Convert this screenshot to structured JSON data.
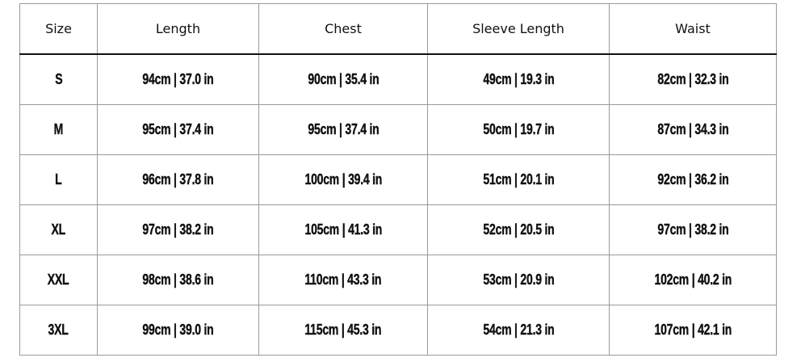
{
  "headers": [
    "Size",
    "Length",
    "Chest",
    "Sleeve Length",
    "Waist"
  ],
  "rows": [
    [
      "S",
      "94cm | 37.0 in",
      "90cm | 35.4 in",
      "49cm | 19.3 in",
      "82cm | 32.3 in"
    ],
    [
      "M",
      "95cm | 37.4 in",
      "95cm | 37.4 in",
      "50cm | 19.7 in",
      "87cm | 34.3 in"
    ],
    [
      "L",
      "96cm | 37.8 in",
      "100cm | 39.4 in",
      "51cm | 20.1 in",
      "92cm | 36.2 in"
    ],
    [
      "XL",
      "97cm | 38.2 in",
      "105cm | 41.3 in",
      "52cm | 20.5 in",
      "97cm | 38.2 in"
    ],
    [
      "XXL",
      "98cm | 38.6 in",
      "110cm | 43.3 in",
      "53cm | 20.9 in",
      "102cm | 40.2 in"
    ],
    [
      "3XL",
      "99cm | 39.0 in",
      "115cm | 45.3 in",
      "54cm | 21.3 in",
      "107cm | 42.1 in"
    ]
  ]
}
